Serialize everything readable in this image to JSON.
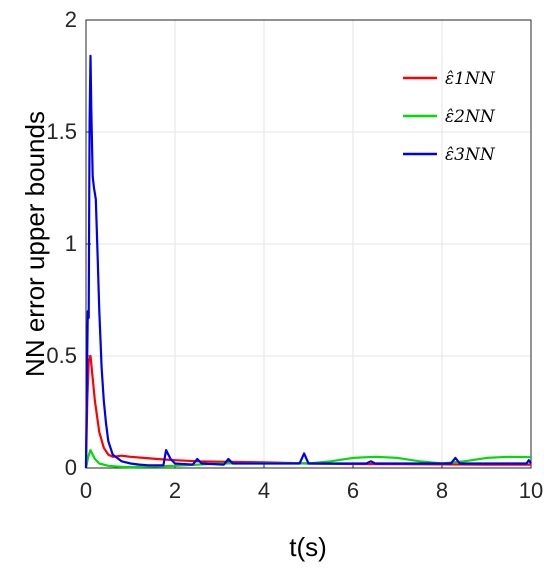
{
  "chart_data": {
    "type": "line",
    "title": "",
    "xlabel": "t(s)",
    "ylabel": "NN error upper bounds",
    "xlim": [
      0,
      10
    ],
    "ylim": [
      0,
      2
    ],
    "x_ticks": [
      "0",
      "2",
      "4",
      "6",
      "8",
      "10"
    ],
    "y_ticks": [
      "0",
      "0.5",
      "1",
      "1.5",
      "2"
    ],
    "grid": true,
    "legend_position": "top-right",
    "series": [
      {
        "name": "ε̂1NN",
        "color": "#ff0000",
        "points": [
          [
            0,
            0.02
          ],
          [
            0.03,
            0.3
          ],
          [
            0.06,
            0.48
          ],
          [
            0.1,
            0.5
          ],
          [
            0.15,
            0.4
          ],
          [
            0.2,
            0.3
          ],
          [
            0.3,
            0.16
          ],
          [
            0.4,
            0.09
          ],
          [
            0.5,
            0.06
          ],
          [
            0.6,
            0.05
          ],
          [
            0.8,
            0.055
          ],
          [
            1.0,
            0.05
          ],
          [
            1.3,
            0.045
          ],
          [
            1.6,
            0.04
          ],
          [
            2.0,
            0.035
          ],
          [
            2.5,
            0.03
          ],
          [
            3,
            0.028
          ],
          [
            4,
            0.025
          ],
          [
            5,
            0.02
          ],
          [
            6,
            0.018
          ],
          [
            7,
            0.017
          ],
          [
            8,
            0.016
          ],
          [
            9,
            0.015
          ],
          [
            10,
            0.015
          ]
        ]
      },
      {
        "name": "ε̂2NN",
        "color": "#00dd00",
        "points": [
          [
            0,
            0.0
          ],
          [
            0.05,
            0.05
          ],
          [
            0.1,
            0.08
          ],
          [
            0.15,
            0.06
          ],
          [
            0.2,
            0.04
          ],
          [
            0.3,
            0.02
          ],
          [
            0.5,
            0.01
          ],
          [
            0.8,
            0.005
          ],
          [
            1,
            0.004
          ],
          [
            2,
            0.01
          ],
          [
            3,
            0.02
          ],
          [
            4,
            0.022
          ],
          [
            5,
            0.02
          ],
          [
            5.5,
            0.03
          ],
          [
            6,
            0.045
          ],
          [
            6.5,
            0.05
          ],
          [
            7,
            0.045
          ],
          [
            7.5,
            0.03
          ],
          [
            8,
            0.02
          ],
          [
            8.5,
            0.03
          ],
          [
            9,
            0.045
          ],
          [
            9.5,
            0.05
          ],
          [
            10,
            0.048
          ]
        ]
      },
      {
        "name": "ε̂3NN",
        "color": "#0000ee",
        "points": [
          [
            0,
            0.0
          ],
          [
            0.02,
            0.4
          ],
          [
            0.04,
            0.7
          ],
          [
            0.06,
            0.67
          ],
          [
            0.08,
            1.55
          ],
          [
            0.1,
            1.84
          ],
          [
            0.12,
            1.6
          ],
          [
            0.15,
            1.3
          ],
          [
            0.18,
            1.25
          ],
          [
            0.22,
            1.2
          ],
          [
            0.26,
            0.95
          ],
          [
            0.3,
            0.7
          ],
          [
            0.35,
            0.45
          ],
          [
            0.4,
            0.3
          ],
          [
            0.45,
            0.2
          ],
          [
            0.5,
            0.12
          ],
          [
            0.6,
            0.06
          ],
          [
            0.8,
            0.03
          ],
          [
            1.0,
            0.02
          ],
          [
            1.2,
            0.015
          ],
          [
            1.4,
            0.012
          ],
          [
            1.6,
            0.012
          ],
          [
            1.74,
            0.012
          ],
          [
            1.8,
            0.08
          ],
          [
            1.9,
            0.04
          ],
          [
            2.0,
            0.02
          ],
          [
            2.4,
            0.015
          ],
          [
            2.5,
            0.04
          ],
          [
            2.6,
            0.02
          ],
          [
            3.1,
            0.015
          ],
          [
            3.2,
            0.04
          ],
          [
            3.3,
            0.02
          ],
          [
            4.8,
            0.02
          ],
          [
            4.9,
            0.065
          ],
          [
            5.0,
            0.02
          ],
          [
            6.3,
            0.02
          ],
          [
            6.4,
            0.03
          ],
          [
            6.5,
            0.02
          ],
          [
            8.2,
            0.02
          ],
          [
            8.3,
            0.045
          ],
          [
            8.4,
            0.02
          ],
          [
            9.9,
            0.02
          ],
          [
            9.95,
            0.035
          ],
          [
            10,
            0.02
          ]
        ]
      }
    ]
  }
}
